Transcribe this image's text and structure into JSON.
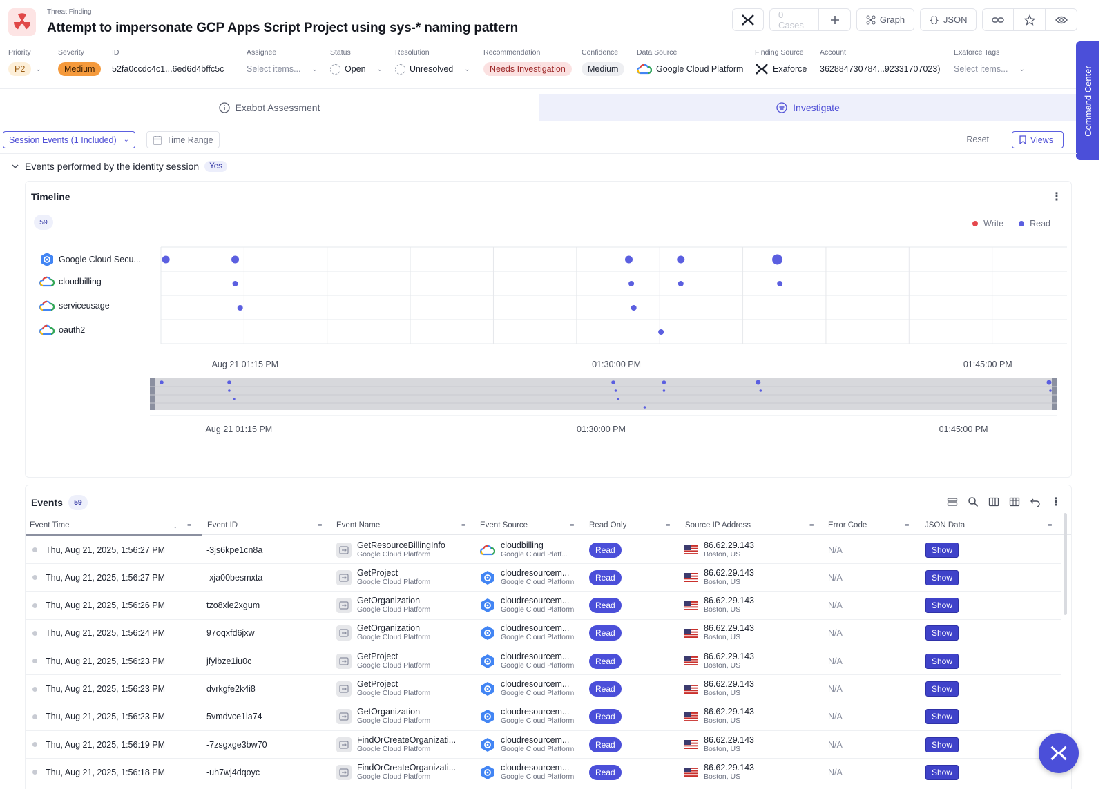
{
  "header": {
    "kind": "Threat Finding",
    "title": "Attempt to impersonate GCP Apps Script Project using sys-* naming pattern",
    "cases_label": "0 Cases",
    "graph_label": "Graph",
    "json_label": "JSON"
  },
  "meta": {
    "priority": {
      "label": "Priority",
      "value": "P2"
    },
    "severity": {
      "label": "Severity",
      "value": "Medium"
    },
    "id": {
      "label": "ID",
      "value": "52fa0ccdc4c1...6ed6d4bffc5c"
    },
    "assignee": {
      "label": "Assignee",
      "placeholder": "Select items..."
    },
    "status": {
      "label": "Status",
      "value": "Open"
    },
    "resolution": {
      "label": "Resolution",
      "value": "Unresolved"
    },
    "recommendation": {
      "label": "Recommendation",
      "value": "Needs Investigation"
    },
    "confidence": {
      "label": "Confidence",
      "value": "Medium"
    },
    "data_source": {
      "label": "Data Source",
      "value": "Google Cloud Platform"
    },
    "finding_source": {
      "label": "Finding Source",
      "value": "Exaforce"
    },
    "account": {
      "label": "Account",
      "value": "362884730784...92331707023)"
    },
    "tags": {
      "label": "Exaforce Tags",
      "placeholder": "Select items..."
    }
  },
  "tabs": [
    {
      "label": "Exabot Assessment"
    },
    {
      "label": "Investigate"
    }
  ],
  "command_center": "Command Center",
  "filters": {
    "session_events": "Session Events (1 Included)",
    "time_range": "Time Range",
    "reset": "Reset",
    "views": "Views"
  },
  "section": {
    "title": "Events performed by the identity session",
    "badge": "Yes"
  },
  "timeline": {
    "title": "Timeline",
    "count": "59",
    "legend": [
      {
        "name": "Write",
        "color": "#e5484d"
      },
      {
        "name": "Read",
        "color": "#5b5fe0"
      }
    ],
    "rows": [
      {
        "label": "Google Cloud Secu...",
        "icon": "google-cloud-security-icon"
      },
      {
        "label": "cloudbilling",
        "icon": "google-cloud-icon"
      },
      {
        "label": "serviceusage",
        "icon": "google-cloud-icon"
      },
      {
        "label": "oauth2",
        "icon": "google-cloud-icon"
      }
    ],
    "x_ticks": [
      "Aug 21 01:15 PM",
      "01:30:00 PM",
      "01:45:00 PM"
    ],
    "mini_x_ticks": [
      "Aug 21 01:15 PM",
      "01:30:00 PM",
      "01:45:00 PM"
    ]
  },
  "events": {
    "title": "Events",
    "count": "59",
    "columns": [
      "Event Time",
      "Event ID",
      "Event Name",
      "Event Source",
      "Read Only",
      "Source IP Address",
      "Error Code",
      "JSON Data"
    ],
    "rows": [
      {
        "time": "Thu, Aug 21, 2025, 1:56:27 PM",
        "id": "-3js6kpe1cn8a",
        "name": "GetResourceBillingInfo",
        "name_sub": "Google Cloud Platform",
        "source": "cloudbilling",
        "source_sub": "Google Cloud Platf...",
        "source_icon": "google-cloud-icon",
        "read": "Read",
        "ip": "86.62.29.143",
        "loc": "Boston, US",
        "error": "N/A",
        "json": "Show"
      },
      {
        "time": "Thu, Aug 21, 2025, 1:56:27 PM",
        "id": "-xja00besmxta",
        "name": "GetProject",
        "name_sub": "Google Cloud Platform",
        "source": "cloudresourcem...",
        "source_sub": "Google Cloud Platform",
        "source_icon": "cloud-resource-manager-icon",
        "read": "Read",
        "ip": "86.62.29.143",
        "loc": "Boston, US",
        "error": "N/A",
        "json": "Show"
      },
      {
        "time": "Thu, Aug 21, 2025, 1:56:26 PM",
        "id": "tzo8xle2xgum",
        "name": "GetOrganization",
        "name_sub": "Google Cloud Platform",
        "source": "cloudresourcem...",
        "source_sub": "Google Cloud Platform",
        "source_icon": "cloud-resource-manager-icon",
        "read": "Read",
        "ip": "86.62.29.143",
        "loc": "Boston, US",
        "error": "N/A",
        "json": "Show"
      },
      {
        "time": "Thu, Aug 21, 2025, 1:56:24 PM",
        "id": "97oqxfd6jxw",
        "name": "GetOrganization",
        "name_sub": "Google Cloud Platform",
        "source": "cloudresourcem...",
        "source_sub": "Google Cloud Platform",
        "source_icon": "cloud-resource-manager-icon",
        "read": "Read",
        "ip": "86.62.29.143",
        "loc": "Boston, US",
        "error": "N/A",
        "json": "Show"
      },
      {
        "time": "Thu, Aug 21, 2025, 1:56:23 PM",
        "id": "jfylbze1iu0c",
        "name": "GetProject",
        "name_sub": "Google Cloud Platform",
        "source": "cloudresourcem...",
        "source_sub": "Google Cloud Platform",
        "source_icon": "cloud-resource-manager-icon",
        "read": "Read",
        "ip": "86.62.29.143",
        "loc": "Boston, US",
        "error": "N/A",
        "json": "Show"
      },
      {
        "time": "Thu, Aug 21, 2025, 1:56:23 PM",
        "id": "dvrkgfe2k4i8",
        "name": "GetProject",
        "name_sub": "Google Cloud Platform",
        "source": "cloudresourcem...",
        "source_sub": "Google Cloud Platform",
        "source_icon": "cloud-resource-manager-icon",
        "read": "Read",
        "ip": "86.62.29.143",
        "loc": "Boston, US",
        "error": "N/A",
        "json": "Show"
      },
      {
        "time": "Thu, Aug 21, 2025, 1:56:23 PM",
        "id": "5vmdvce1la74",
        "name": "GetOrganization",
        "name_sub": "Google Cloud Platform",
        "source": "cloudresourcem...",
        "source_sub": "Google Cloud Platform",
        "source_icon": "cloud-resource-manager-icon",
        "read": "Read",
        "ip": "86.62.29.143",
        "loc": "Boston, US",
        "error": "N/A",
        "json": "Show"
      },
      {
        "time": "Thu, Aug 21, 2025, 1:56:19 PM",
        "id": "-7zsgxge3bw70",
        "name": "FindOrCreateOrganizati...",
        "name_sub": "Google Cloud Platform",
        "source": "cloudresourcem...",
        "source_sub": "Google Cloud Platform",
        "source_icon": "cloud-resource-manager-icon",
        "read": "Read",
        "ip": "86.62.29.143",
        "loc": "Boston, US",
        "error": "N/A",
        "json": "Show"
      },
      {
        "time": "Thu, Aug 21, 2025, 1:56:18 PM",
        "id": "-uh7wj4dqoyc",
        "name": "FindOrCreateOrganizati...",
        "name_sub": "Google Cloud Platform",
        "source": "cloudresourcem...",
        "source_sub": "Google Cloud Platform",
        "source_icon": "cloud-resource-manager-icon",
        "read": "Read",
        "ip": "86.62.29.143",
        "loc": "Boston, US",
        "error": "N/A",
        "json": "Show"
      }
    ]
  },
  "chart_data": {
    "type": "scatter",
    "categories": [
      "Google Cloud Secu...",
      "cloudbilling",
      "serviceusage",
      "oauth2"
    ],
    "x_ticks": [
      "Aug 21 01:15 PM",
      "01:30:00 PM",
      "01:45:00 PM"
    ],
    "series": [
      {
        "name": "Read",
        "points": [
          {
            "row": 0,
            "minutes_after_1pm": 11.8,
            "weight": 1
          },
          {
            "row": 0,
            "minutes_after_1pm": 14.6,
            "weight": 1
          },
          {
            "row": 0,
            "minutes_after_1pm": 30.5,
            "weight": 1
          },
          {
            "row": 0,
            "minutes_after_1pm": 32.6,
            "weight": 1
          },
          {
            "row": 0,
            "minutes_after_1pm": 36.5,
            "weight": 2
          },
          {
            "row": 1,
            "minutes_after_1pm": 14.6,
            "weight": 0
          },
          {
            "row": 1,
            "minutes_after_1pm": 30.6,
            "weight": 0
          },
          {
            "row": 1,
            "minutes_after_1pm": 32.6,
            "weight": 0
          },
          {
            "row": 1,
            "minutes_after_1pm": 36.6,
            "weight": 0
          },
          {
            "row": 2,
            "minutes_after_1pm": 14.8,
            "weight": 0
          },
          {
            "row": 2,
            "minutes_after_1pm": 30.7,
            "weight": 0
          },
          {
            "row": 3,
            "minutes_after_1pm": 31.8,
            "weight": 0
          }
        ]
      },
      {
        "name": "Write",
        "points": []
      }
    ],
    "legend": "top-right",
    "grid": true
  }
}
